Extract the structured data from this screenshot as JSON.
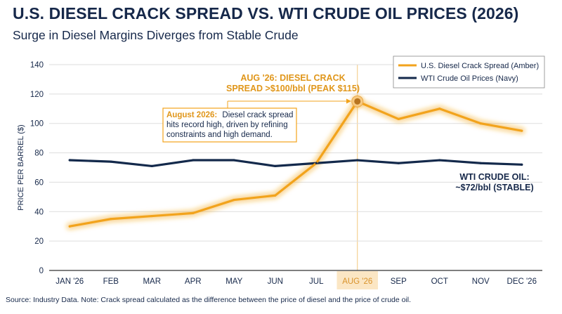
{
  "title": "U.S. DIESEL CRACK SPREAD VS. WTI CRUDE OIL PRICES (2026)",
  "subtitle": "Surge in Diesel Margins Diverges from Stable Crude",
  "source": "Source: Industry Data. Note: Crack spread calculated as the difference between the price of diesel and the price of crude oil.",
  "colors": {
    "diesel": "#f2a31c",
    "wti": "#13294b",
    "highlight": "#fbe6c4",
    "grid": "#dddddd",
    "text": "#16284a"
  },
  "chart_data": {
    "type": "line",
    "categories": [
      "JAN '26",
      "FEB",
      "MAR",
      "APR",
      "MAY",
      "JUN",
      "JUL",
      "AUG '26",
      "SEP",
      "OCT",
      "NOV",
      "DEC '26"
    ],
    "highlight_category": "AUG '26",
    "series": [
      {
        "name": "U.S. Diesel Crack Spread (Amber)",
        "color": "#f2a31c",
        "values": [
          30,
          35,
          37,
          39,
          48,
          51,
          73,
          115,
          103,
          110,
          100,
          95
        ]
      },
      {
        "name": "WTI Crude Oil Prices (Navy)",
        "color": "#13294b",
        "values": [
          75,
          74,
          71,
          75,
          75,
          71,
          73,
          75,
          73,
          75,
          73,
          72
        ]
      }
    ],
    "ylabel": "PRICE PER BARREL ($)",
    "xlabel": "",
    "ylim": [
      0,
      140
    ],
    "yticks": [
      0,
      20,
      40,
      60,
      80,
      100,
      120,
      140
    ],
    "grid": true,
    "legend": "top-right",
    "annotations": {
      "peak_line1": "AUG '26: DIESEL CRACK",
      "peak_line2": "SPREAD >$100/bbl (PEAK $115)",
      "box_bold": "August 2026:",
      "box_line1": "Diesel crack spread",
      "box_line2": "hits record high, driven by refining",
      "box_line3": "constraints and high demand.",
      "wti_line1": "WTI CRUDE OIL:",
      "wti_line2": "~$72/bbl (STABLE)"
    }
  }
}
